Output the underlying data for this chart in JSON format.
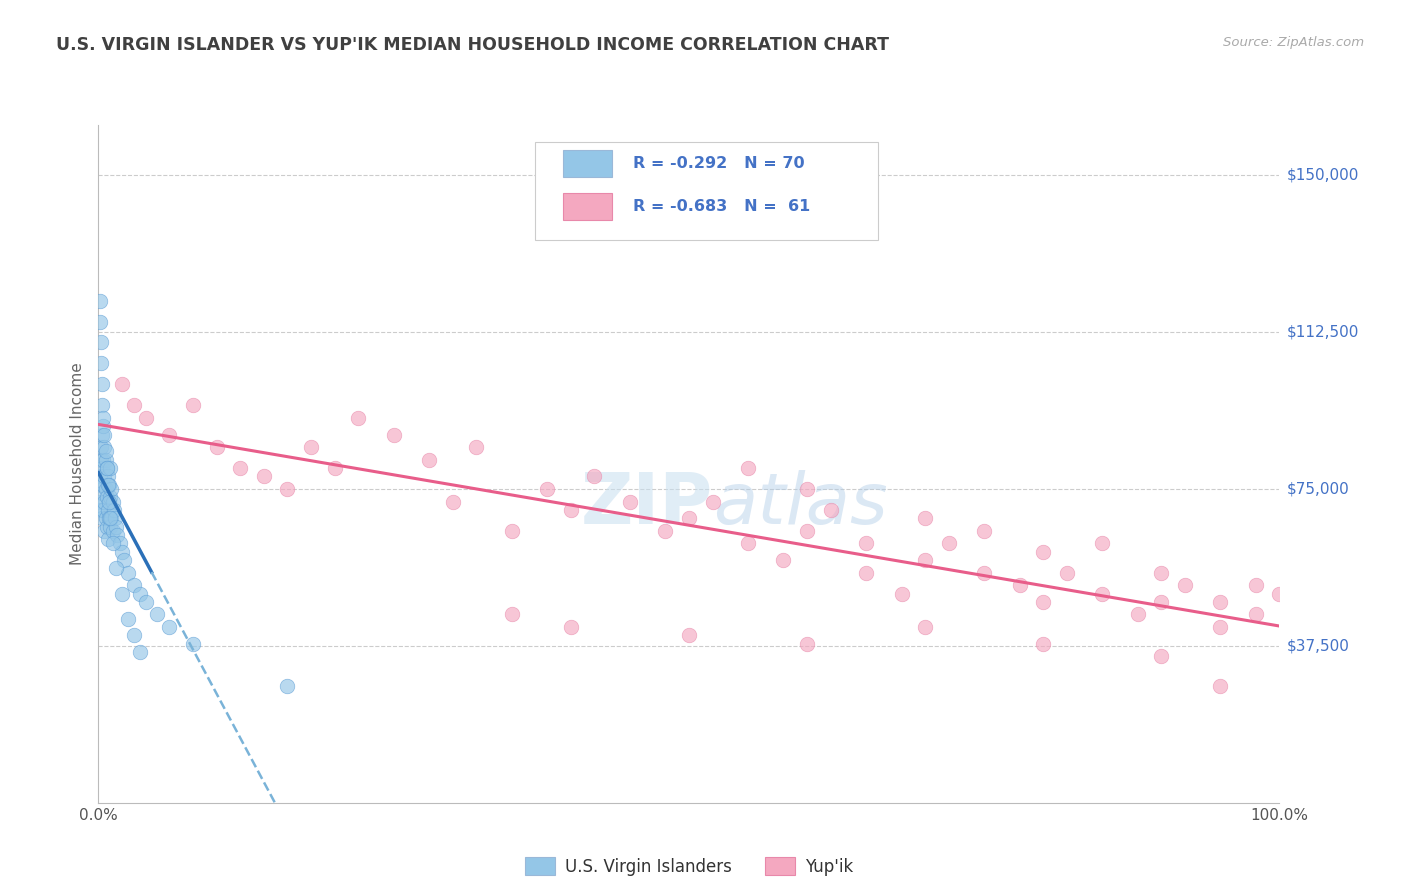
{
  "title": "U.S. VIRGIN ISLANDER VS YUP'IK MEDIAN HOUSEHOLD INCOME CORRELATION CHART",
  "source": "Source: ZipAtlas.com",
  "ylabel": "Median Household Income",
  "xlim": [
    0.0,
    1.0
  ],
  "ylim": [
    0,
    162000
  ],
  "yticks": [
    37500,
    75000,
    112500,
    150000
  ],
  "ytick_labels": [
    "$37,500",
    "$75,000",
    "$112,500",
    "$150,000"
  ],
  "xtick_labels": [
    "0.0%",
    "100.0%"
  ],
  "watermark_zip": "ZIP",
  "watermark_atlas": "atlas",
  "color_blue": "#94c6e7",
  "color_blue_dark": "#5b9bd5",
  "color_pink": "#f4a8c0",
  "color_pink_line": "#e85d8a",
  "color_blue_line": "#2b70b8",
  "color_blue_line_dash": "#7ab3d8",
  "color_ytick": "#4472c6",
  "color_title": "#404040",
  "color_source": "#aaaaaa",
  "scatter_alpha": 0.65,
  "scatter_size": 110,
  "blue_x": [
    0.001,
    0.001,
    0.002,
    0.002,
    0.002,
    0.002,
    0.003,
    0.003,
    0.003,
    0.003,
    0.004,
    0.004,
    0.004,
    0.004,
    0.005,
    0.005,
    0.005,
    0.005,
    0.006,
    0.006,
    0.006,
    0.007,
    0.007,
    0.007,
    0.008,
    0.008,
    0.008,
    0.009,
    0.009,
    0.01,
    0.01,
    0.01,
    0.011,
    0.011,
    0.012,
    0.012,
    0.013,
    0.014,
    0.015,
    0.016,
    0.018,
    0.02,
    0.022,
    0.025,
    0.03,
    0.035,
    0.04,
    0.05,
    0.06,
    0.08,
    0.001,
    0.001,
    0.002,
    0.002,
    0.003,
    0.003,
    0.004,
    0.005,
    0.006,
    0.007,
    0.008,
    0.009,
    0.01,
    0.012,
    0.015,
    0.02,
    0.025,
    0.03,
    0.035,
    0.16
  ],
  "blue_y": [
    78000,
    72000,
    82000,
    76000,
    85000,
    70000,
    88000,
    80000,
    74000,
    68000,
    90000,
    82000,
    76000,
    70000,
    85000,
    78000,
    72000,
    65000,
    82000,
    75000,
    68000,
    80000,
    73000,
    66000,
    78000,
    70000,
    63000,
    76000,
    68000,
    80000,
    73000,
    66000,
    75000,
    68000,
    72000,
    65000,
    70000,
    68000,
    66000,
    64000,
    62000,
    60000,
    58000,
    55000,
    52000,
    50000,
    48000,
    45000,
    42000,
    38000,
    120000,
    115000,
    110000,
    105000,
    100000,
    95000,
    92000,
    88000,
    84000,
    80000,
    76000,
    72000,
    68000,
    62000,
    56000,
    50000,
    44000,
    40000,
    36000,
    28000
  ],
  "pink_x": [
    0.02,
    0.03,
    0.04,
    0.06,
    0.08,
    0.1,
    0.12,
    0.14,
    0.16,
    0.18,
    0.2,
    0.22,
    0.25,
    0.28,
    0.3,
    0.32,
    0.35,
    0.38,
    0.4,
    0.42,
    0.45,
    0.48,
    0.5,
    0.52,
    0.55,
    0.55,
    0.58,
    0.6,
    0.6,
    0.62,
    0.65,
    0.65,
    0.68,
    0.7,
    0.7,
    0.72,
    0.75,
    0.75,
    0.78,
    0.8,
    0.8,
    0.82,
    0.85,
    0.85,
    0.88,
    0.9,
    0.9,
    0.92,
    0.95,
    0.95,
    0.98,
    0.98,
    1.0,
    0.35,
    0.4,
    0.5,
    0.6,
    0.7,
    0.8,
    0.9,
    0.95
  ],
  "pink_y": [
    100000,
    95000,
    92000,
    88000,
    95000,
    85000,
    80000,
    78000,
    75000,
    85000,
    80000,
    92000,
    88000,
    82000,
    72000,
    85000,
    65000,
    75000,
    70000,
    78000,
    72000,
    65000,
    68000,
    72000,
    80000,
    62000,
    58000,
    65000,
    75000,
    70000,
    55000,
    62000,
    50000,
    58000,
    68000,
    62000,
    55000,
    65000,
    52000,
    60000,
    48000,
    55000,
    50000,
    62000,
    45000,
    55000,
    48000,
    52000,
    48000,
    42000,
    52000,
    45000,
    50000,
    45000,
    42000,
    40000,
    38000,
    42000,
    38000,
    35000,
    28000
  ]
}
